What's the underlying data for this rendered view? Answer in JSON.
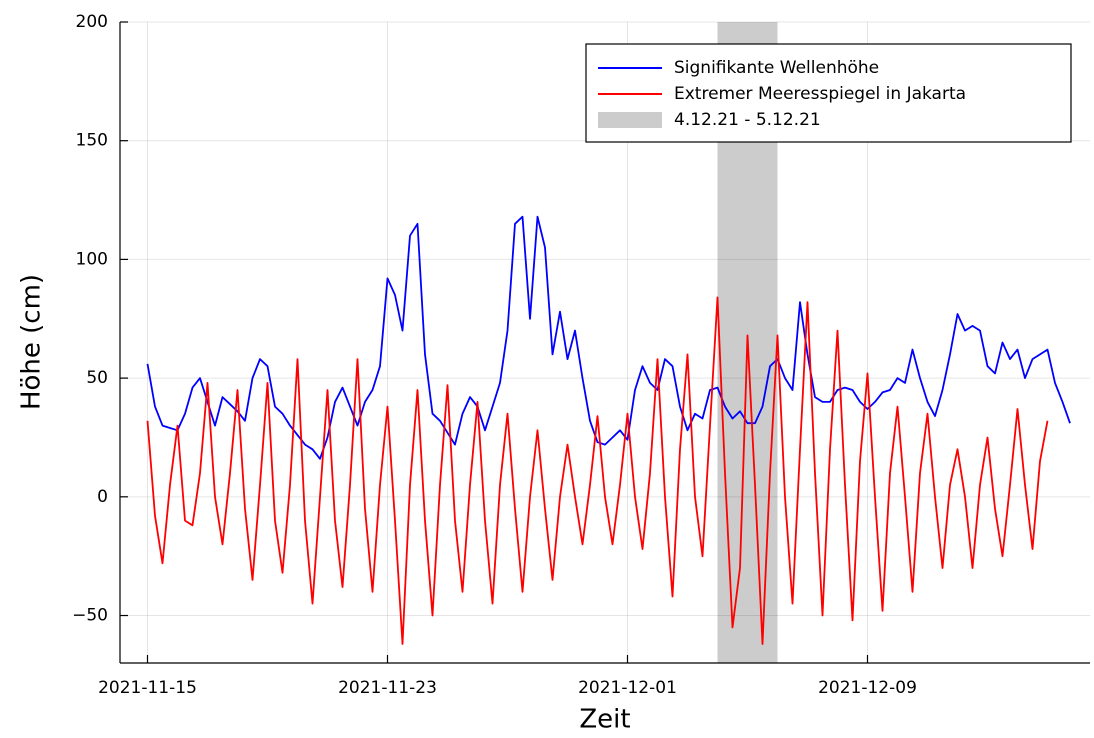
{
  "chart_data": {
    "type": "line",
    "xlabel": "Zeit",
    "ylabel": "Höhe (cm)",
    "x": [
      "2021-11-15T00",
      "2021-11-15T06",
      "2021-11-15T12",
      "2021-11-15T18",
      "2021-11-16T00",
      "2021-11-16T06",
      "2021-11-16T12",
      "2021-11-16T18",
      "2021-11-17T00",
      "2021-11-17T06",
      "2021-11-17T12",
      "2021-11-17T18",
      "2021-11-18T00",
      "2021-11-18T06",
      "2021-11-18T12",
      "2021-11-18T18",
      "2021-11-19T00",
      "2021-11-19T06",
      "2021-11-19T12",
      "2021-11-19T18",
      "2021-11-20T00",
      "2021-11-20T06",
      "2021-11-20T12",
      "2021-11-20T18",
      "2021-11-21T00",
      "2021-11-21T06",
      "2021-11-21T12",
      "2021-11-21T18",
      "2021-11-22T00",
      "2021-11-22T06",
      "2021-11-22T12",
      "2021-11-22T18",
      "2021-11-23T00",
      "2021-11-23T06",
      "2021-11-23T12",
      "2021-11-23T18",
      "2021-11-24T00",
      "2021-11-24T06",
      "2021-11-24T12",
      "2021-11-24T18",
      "2021-11-25T00",
      "2021-11-25T06",
      "2021-11-25T12",
      "2021-11-25T18",
      "2021-11-26T00",
      "2021-11-26T06",
      "2021-11-26T12",
      "2021-11-26T18",
      "2021-11-27T00",
      "2021-11-27T06",
      "2021-11-27T12",
      "2021-11-27T18",
      "2021-11-28T00",
      "2021-11-28T06",
      "2021-11-28T12",
      "2021-11-28T18",
      "2021-11-29T00",
      "2021-11-29T06",
      "2021-11-29T12",
      "2021-11-29T18",
      "2021-11-30T00",
      "2021-11-30T06",
      "2021-11-30T12",
      "2021-11-30T18",
      "2021-12-01T00",
      "2021-12-01T06",
      "2021-12-01T12",
      "2021-12-01T18",
      "2021-12-02T00",
      "2021-12-02T06",
      "2021-12-02T12",
      "2021-12-02T18",
      "2021-12-03T00",
      "2021-12-03T06",
      "2021-12-03T12",
      "2021-12-03T18",
      "2021-12-04T00",
      "2021-12-04T06",
      "2021-12-04T12",
      "2021-12-04T18",
      "2021-12-05T00",
      "2021-12-05T06",
      "2021-12-05T12",
      "2021-12-05T18",
      "2021-12-06T00",
      "2021-12-06T06",
      "2021-12-06T12",
      "2021-12-06T18",
      "2021-12-07T00",
      "2021-12-07T06",
      "2021-12-07T12",
      "2021-12-07T18",
      "2021-12-08T00",
      "2021-12-08T06",
      "2021-12-08T12",
      "2021-12-08T18",
      "2021-12-09T00",
      "2021-12-09T06",
      "2021-12-09T12",
      "2021-12-09T18",
      "2021-12-10T00",
      "2021-12-10T06",
      "2021-12-10T12",
      "2021-12-10T18",
      "2021-12-11T00",
      "2021-12-11T06",
      "2021-12-11T12",
      "2021-12-11T18",
      "2021-12-12T00",
      "2021-12-12T06",
      "2021-12-12T12",
      "2021-12-12T18",
      "2021-12-13T00",
      "2021-12-13T06",
      "2021-12-13T12",
      "2021-12-13T18",
      "2021-12-14T00",
      "2021-12-14T06",
      "2021-12-14T12",
      "2021-12-14T18",
      "2021-12-15T00",
      "2021-12-15T06",
      "2021-12-15T12",
      "2021-12-15T18"
    ],
    "series": [
      {
        "name": "Signifikante Wellenhöhe",
        "color": "#0000ff",
        "values": [
          56,
          38,
          30,
          29,
          28,
          35,
          46,
          50,
          40,
          30,
          42,
          39,
          36,
          32,
          50,
          58,
          55,
          38,
          35,
          30,
          26,
          22,
          20,
          16,
          25,
          40,
          46,
          38,
          30,
          40,
          45,
          55,
          92,
          85,
          70,
          110,
          115,
          60,
          35,
          32,
          27,
          22,
          35,
          42,
          38,
          28,
          38,
          48,
          70,
          115,
          118,
          75,
          118,
          105,
          60,
          78,
          58,
          70,
          50,
          32,
          23,
          22,
          25,
          28,
          24,
          45,
          55,
          48,
          45,
          58,
          55,
          38,
          28,
          35,
          33,
          45,
          46,
          38,
          33,
          36,
          31,
          31,
          38,
          55,
          58,
          50,
          45,
          82,
          60,
          42,
          40,
          40,
          45,
          46,
          45,
          40,
          37,
          40,
          44,
          45,
          50,
          48,
          62,
          50,
          40,
          34,
          45,
          60,
          77,
          70,
          72,
          70,
          55,
          52,
          65,
          58,
          62,
          50,
          58,
          60,
          62,
          48,
          40,
          31
        ]
      },
      {
        "name": "Extremer Meeresspiegel in Jakarta",
        "color": "#ff0000",
        "values": [
          32,
          -8,
          -28,
          5,
          30,
          -10,
          -12,
          10,
          48,
          0,
          -20,
          10,
          45,
          -5,
          -35,
          5,
          48,
          -10,
          -32,
          5,
          58,
          -10,
          -45,
          0,
          45,
          -10,
          -38,
          5,
          58,
          -5,
          -40,
          5,
          38,
          -10,
          -62,
          5,
          45,
          -10,
          -50,
          5,
          47,
          -10,
          -40,
          5,
          40,
          -10,
          -45,
          5,
          35,
          -5,
          -40,
          0,
          28,
          -5,
          -35,
          0,
          22,
          0,
          -20,
          5,
          34,
          0,
          -20,
          5,
          35,
          0,
          -22,
          10,
          58,
          0,
          -42,
          20,
          60,
          0,
          -25,
          30,
          84,
          10,
          -55,
          -30,
          68,
          5,
          -62,
          10,
          68,
          0,
          -45,
          20,
          82,
          10,
          -50,
          20,
          70,
          5,
          -52,
          15,
          52,
          0,
          -48,
          10,
          38,
          0,
          -40,
          10,
          35,
          0,
          -30,
          5,
          20,
          0,
          -30,
          5,
          25,
          -5,
          -25,
          5,
          37,
          5,
          -22,
          15,
          32,
          null,
          null,
          null
        ]
      }
    ],
    "span": {
      "name": "4.12.21 - 5.12.21",
      "color": "#cccccc",
      "range": [
        "2021-12-04T00",
        "2021-12-06T00"
      ]
    },
    "xlim": [
      "2021-11-14T02",
      "2021-12-16T10"
    ],
    "xticks": [
      "2021-11-15",
      "2021-11-23",
      "2021-12-01",
      "2021-12-09"
    ],
    "ylim": [
      -70,
      200
    ],
    "yticks": [
      {
        "value": -50,
        "label": "−50"
      },
      0,
      50,
      100,
      150,
      200
    ],
    "grid": true,
    "legend": "upper right"
  }
}
